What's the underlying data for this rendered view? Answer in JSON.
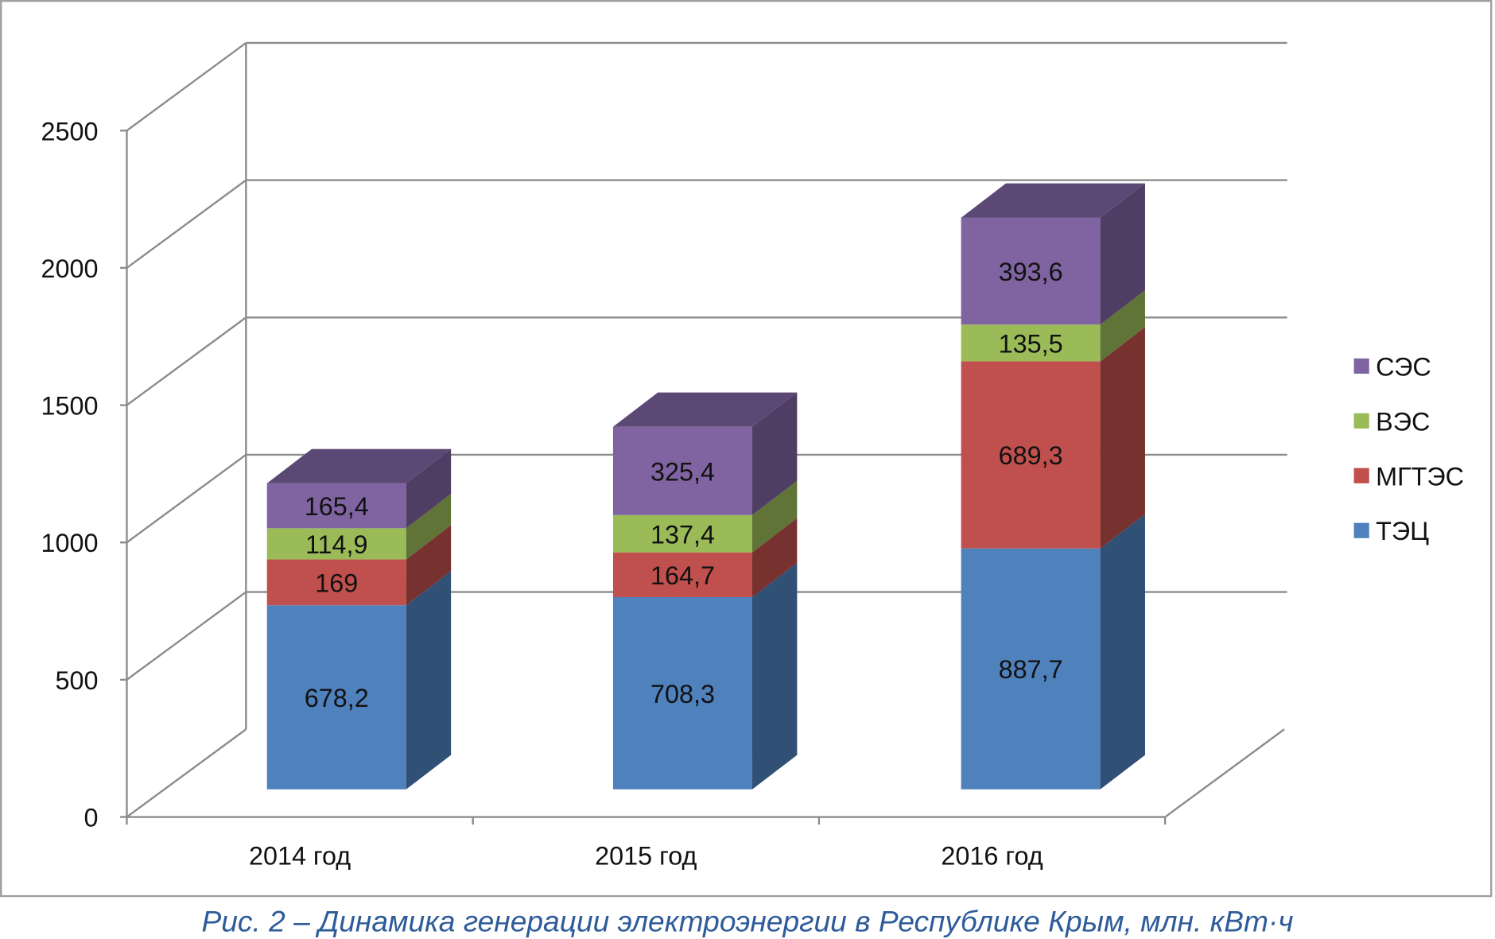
{
  "chart_data": {
    "type": "bar",
    "stacked": true,
    "three_d": true,
    "title": "Рис. 2 – Динамика генерации электроэнергии в Республике Крым, млн. кВт·ч",
    "categories": [
      "2014 год",
      "2015 год",
      "2016 год"
    ],
    "series": [
      {
        "name": "ТЭЦ",
        "color": "#4F81BD",
        "values": [
          678.2,
          708.3,
          887.7
        ],
        "labels": [
          "678,2",
          "708,3",
          "887,7"
        ]
      },
      {
        "name": "МГТЭС",
        "color": "#C0504D",
        "values": [
          169,
          164.7,
          689.3
        ],
        "labels": [
          "169",
          "164,7",
          "689,3"
        ]
      },
      {
        "name": "ВЭС",
        "color": "#9BBB59",
        "values": [
          114.9,
          137.4,
          135.5
        ],
        "labels": [
          "114,9",
          "137,4",
          "135,5"
        ]
      },
      {
        "name": "СЭС",
        "color": "#8064A2",
        "values": [
          165.4,
          325.4,
          393.6
        ],
        "labels": [
          "165,4",
          "325,4",
          "393,6"
        ]
      }
    ],
    "ylim": [
      0,
      2500
    ],
    "yticks": [
      "0",
      "500",
      "1000",
      "1500",
      "2000",
      "2500"
    ],
    "grid": true,
    "legend": "right"
  }
}
